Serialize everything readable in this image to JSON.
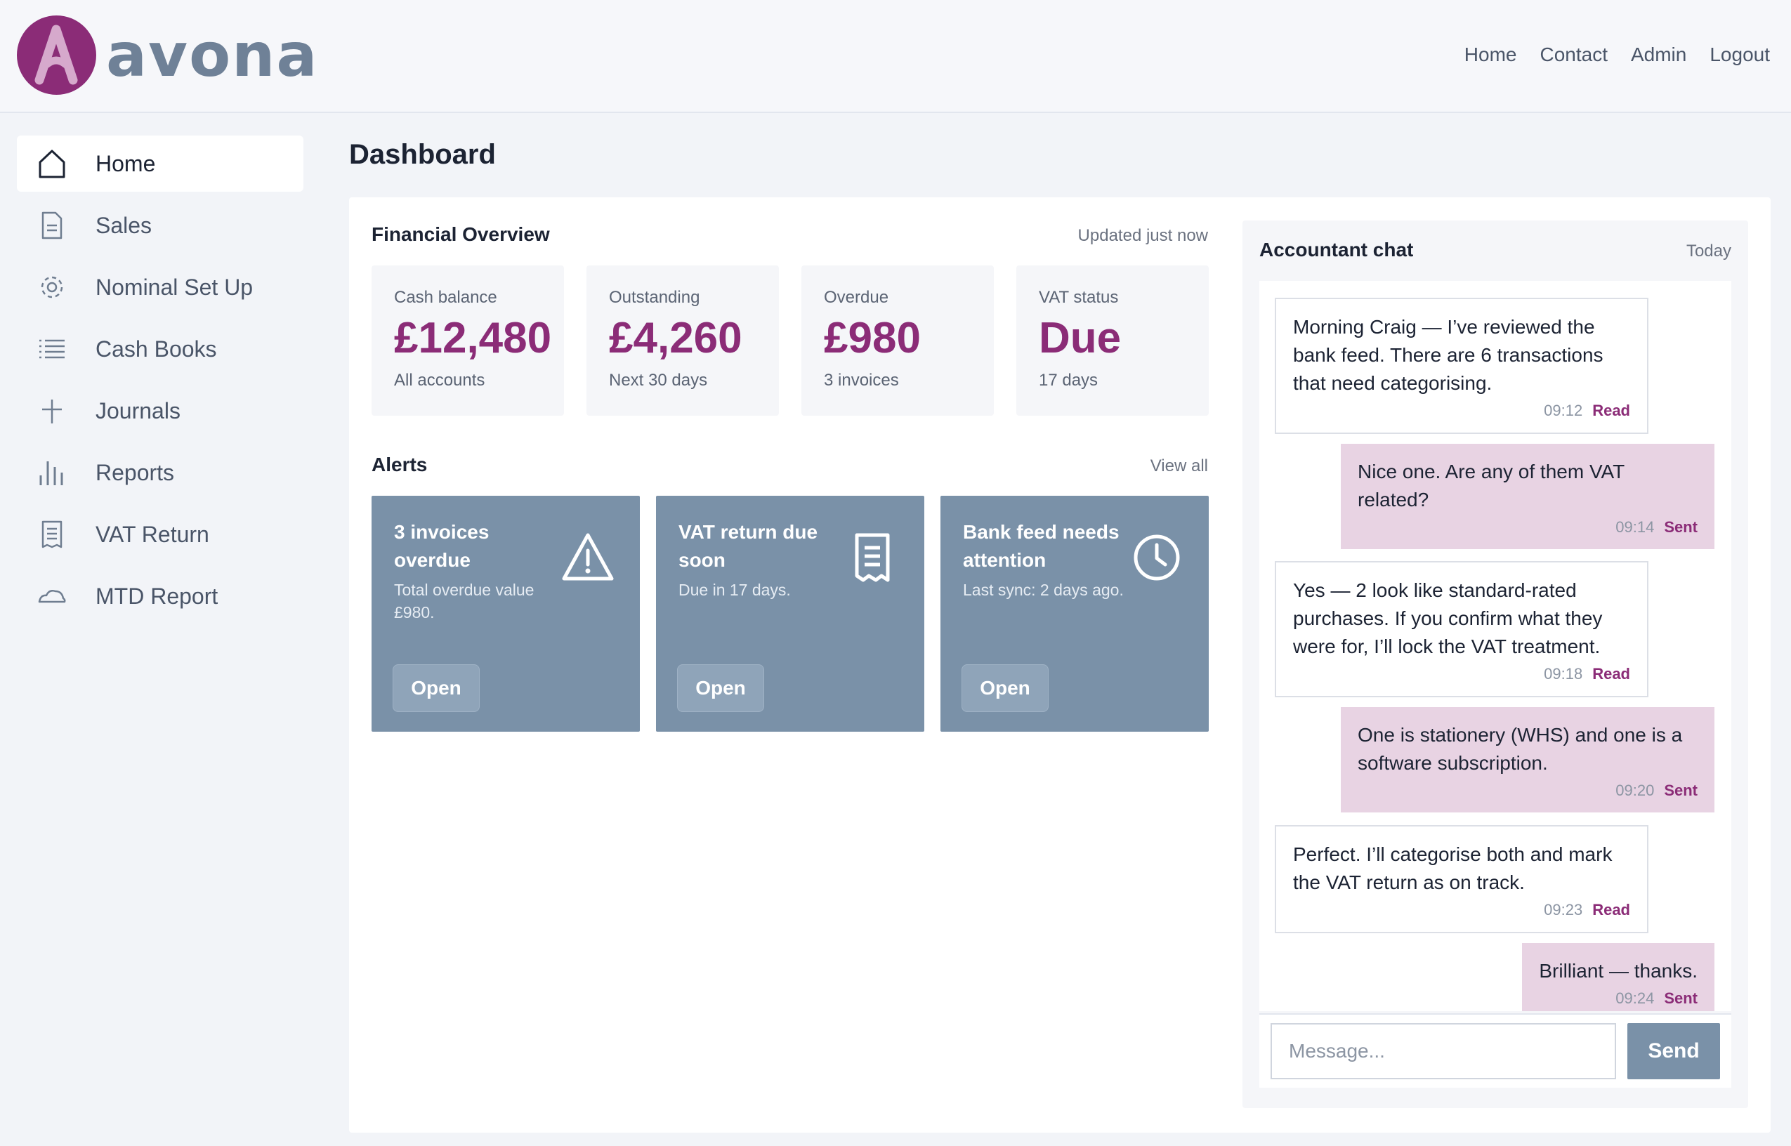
{
  "brand": {
    "name": "avona",
    "accent": "#8b2c77",
    "slate": "#7a91a8"
  },
  "topnav": [
    "Home",
    "Contact",
    "Admin",
    "Logout"
  ],
  "sidebar": {
    "items": [
      {
        "label": "Home",
        "icon": "home-icon"
      },
      {
        "label": "Sales",
        "icon": "document-icon"
      },
      {
        "label": "Nominal Set Up",
        "icon": "gear-icon"
      },
      {
        "label": "Cash Books",
        "icon": "list-icon"
      },
      {
        "label": "Journals",
        "icon": "plus-icon"
      },
      {
        "label": "Reports",
        "icon": "bar-chart-icon"
      },
      {
        "label": "VAT Return",
        "icon": "receipt-icon"
      },
      {
        "label": "MTD Report",
        "icon": "cloud-icon"
      }
    ]
  },
  "page": {
    "title": "Dashboard"
  },
  "overview": {
    "title": "Financial Overview",
    "meta": "Updated just now",
    "kpis": [
      {
        "label": "Cash balance",
        "value": "£12,480",
        "sub": "All accounts"
      },
      {
        "label": "Outstanding",
        "value": "£4,260",
        "sub": "Next 30 days"
      },
      {
        "label": "Overdue",
        "value": "£980",
        "sub": "3 invoices"
      },
      {
        "label": "VAT status",
        "value": "Due",
        "sub": "17 days"
      }
    ]
  },
  "alerts": {
    "title": "Alerts",
    "view_all": "View all",
    "items": [
      {
        "title": "3 invoices overdue",
        "desc": "Total overdue value £980.",
        "button": "Open",
        "icon": "warning-icon"
      },
      {
        "title": "VAT return due soon",
        "desc": "Due in 17 days.",
        "button": "Open",
        "icon": "receipt-icon"
      },
      {
        "title": "Bank feed needs attention",
        "desc": "Last sync: 2 days ago.",
        "button": "Open",
        "icon": "clock-icon"
      }
    ]
  },
  "chat": {
    "title": "Accountant chat",
    "meta": "Today",
    "messages": [
      {
        "dir": "in",
        "text": "Morning Craig — I’ve reviewed the bank feed. There are 6 transactions that need categorising.",
        "time": "09:12",
        "status": "Read"
      },
      {
        "dir": "out",
        "text": "Nice one. Are any of them VAT related?",
        "time": "09:14",
        "status": "Sent"
      },
      {
        "dir": "in",
        "text": "Yes — 2 look like standard-rated purchases. If you confirm what they were for, I’ll lock the VAT treatment.",
        "time": "09:18",
        "status": "Read"
      },
      {
        "dir": "out",
        "text": "One is stationery (WHS) and one is a software subscription.",
        "time": "09:20",
        "status": "Sent"
      },
      {
        "dir": "in",
        "text": "Perfect. I’ll categorise both and mark the VAT return as on track.",
        "time": "09:23",
        "status": "Read"
      },
      {
        "dir": "out",
        "text": "Brilliant — thanks.",
        "time": "09:24",
        "status": "Sent"
      }
    ],
    "input_placeholder": "Message...",
    "send_label": "Send"
  }
}
